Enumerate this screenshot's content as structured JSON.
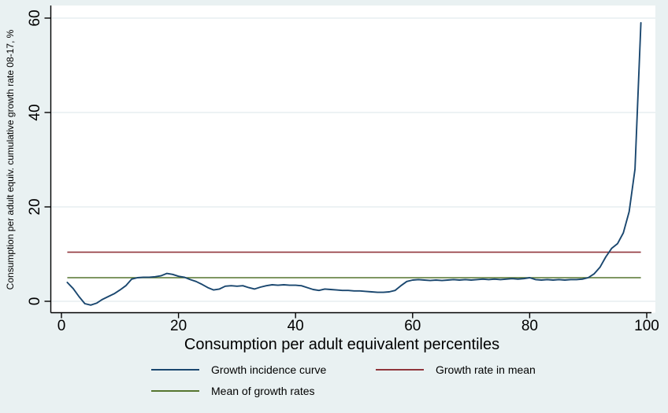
{
  "colors": {
    "background": "#e9f1f2",
    "plot_background": "#ffffff",
    "grid": "#e2ebed",
    "axis": "#000000",
    "gic_line": "#1a476f",
    "growth_rate_mean_line": "#90353b",
    "mean_growth_rates_line": "#55752f"
  },
  "chart": {
    "y_axis": {
      "title": "Consumption per adult equiv. cumulative growth rate 08-17, %",
      "tick_labels": [
        "0",
        "20",
        "40",
        "60"
      ]
    },
    "x_axis": {
      "title": "Consumption per adult equivalent percentiles",
      "tick_labels": [
        "0",
        "20",
        "40",
        "60",
        "80",
        "100"
      ]
    }
  },
  "legend": {
    "items": [
      {
        "label": "Growth incidence curve",
        "color": "#1a476f"
      },
      {
        "label": "Growth rate in mean",
        "color": "#90353b"
      },
      {
        "label": "Mean of growth rates",
        "color": "#55752f"
      }
    ]
  },
  "chart_data": {
    "type": "line",
    "title": "",
    "xlabel": "Consumption per adult equivalent percentiles",
    "ylabel": "Consumption per adult equiv. cumulative growth rate 08-17, %",
    "x_ticks": [
      0,
      20,
      40,
      60,
      80,
      100
    ],
    "y_ticks": [
      0,
      20,
      40,
      60
    ],
    "xlim": [
      -2,
      103
    ],
    "ylim": [
      -2.4,
      62.7
    ],
    "grid": "horizontal",
    "legend_position": "bottom",
    "series": [
      {
        "name": "Growth incidence curve",
        "type": "line",
        "color": "#1a476f",
        "x_start": 1,
        "x_step": 1,
        "values": [
          4.0,
          2.7,
          1.0,
          -0.5,
          -0.8,
          -0.4,
          0.4,
          1.0,
          1.6,
          2.4,
          3.3,
          4.7,
          5.0,
          5.1,
          5.1,
          5.2,
          5.4,
          5.9,
          5.7,
          5.3,
          5.1,
          4.6,
          4.2,
          3.6,
          2.9,
          2.4,
          2.6,
          3.2,
          3.3,
          3.2,
          3.3,
          2.9,
          2.6,
          3.0,
          3.3,
          3.5,
          3.4,
          3.5,
          3.4,
          3.4,
          3.3,
          2.9,
          2.5,
          2.3,
          2.6,
          2.5,
          2.4,
          2.3,
          2.3,
          2.2,
          2.2,
          2.1,
          2.0,
          1.9,
          1.9,
          2.0,
          2.3,
          3.3,
          4.2,
          4.5,
          4.6,
          4.5,
          4.4,
          4.5,
          4.4,
          4.5,
          4.6,
          4.5,
          4.6,
          4.5,
          4.6,
          4.7,
          4.6,
          4.7,
          4.6,
          4.7,
          4.8,
          4.7,
          4.8,
          5.0,
          4.6,
          4.5,
          4.6,
          4.5,
          4.6,
          4.5,
          4.6,
          4.6,
          4.7,
          5.0,
          5.8,
          7.2,
          9.4,
          11.2,
          12.2,
          14.5,
          19.0,
          28.0,
          59.0
        ]
      },
      {
        "name": "Growth rate in mean",
        "type": "hline",
        "color": "#90353b",
        "value": 10.4,
        "x_range": [
          1,
          99
        ]
      },
      {
        "name": "Mean of growth rates",
        "type": "hline",
        "color": "#55752f",
        "value": 5.0,
        "x_range": [
          1,
          99
        ]
      }
    ]
  }
}
